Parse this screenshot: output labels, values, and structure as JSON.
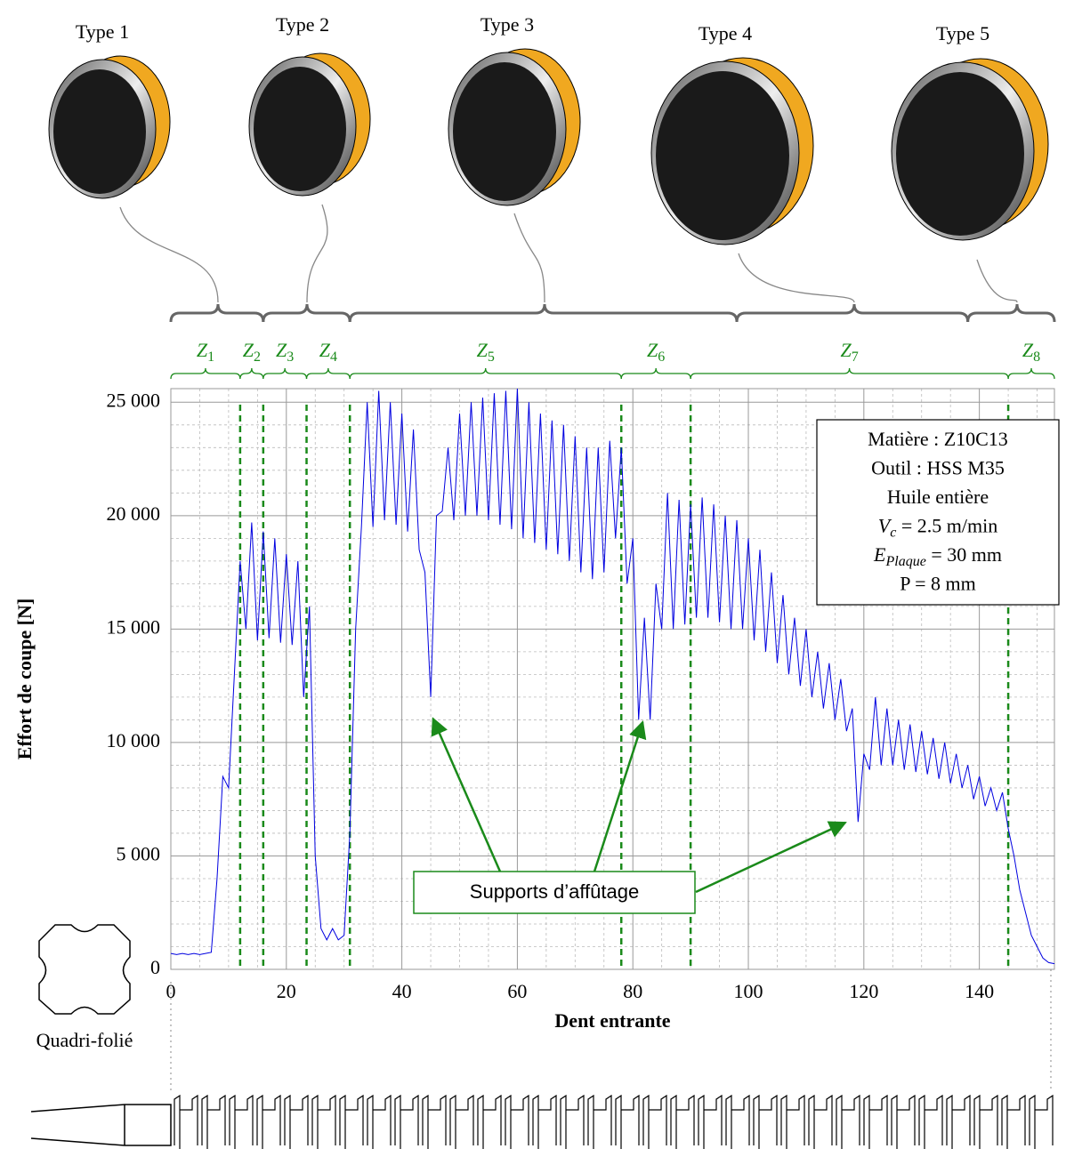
{
  "chart_data": {
    "type": "line",
    "xlabel": "Dent entrante",
    "ylabel": "Effort de coupe [N]",
    "xlim": [
      0,
      153
    ],
    "ylim": [
      0,
      25600
    ],
    "xticks": [
      0,
      20,
      40,
      60,
      80,
      100,
      120,
      140
    ],
    "yticks": [
      0,
      {
        "value": 5000,
        "label": "5 000"
      },
      {
        "value": 10000,
        "label": "10 000"
      },
      {
        "value": 15000,
        "label": "15 000"
      },
      {
        "value": 20000,
        "label": "20 000"
      },
      {
        "value": 25000,
        "label": "25 000"
      }
    ],
    "xminorticks": [
      5,
      10,
      15,
      25,
      30,
      35,
      45,
      50,
      55,
      65,
      70,
      75,
      85,
      90,
      95,
      105,
      110,
      115,
      125,
      130,
      135,
      145,
      150
    ],
    "yminorticks": [
      1000,
      2000,
      3000,
      4000,
      6000,
      7000,
      8000,
      9000,
      11000,
      12000,
      13000,
      14000,
      16000,
      17000,
      18000,
      19000,
      21000,
      22000,
      23000,
      24000
    ],
    "grid": true,
    "x": [
      0,
      1,
      2,
      3,
      4,
      5,
      6,
      7,
      8,
      9,
      10,
      11,
      12,
      13,
      14,
      15,
      16,
      17,
      18,
      19,
      20,
      21,
      22,
      23,
      24,
      25,
      26,
      27,
      28,
      29,
      30,
      31,
      32,
      33,
      34,
      35,
      36,
      37,
      38,
      39,
      40,
      41,
      42,
      43,
      44,
      45,
      46,
      47,
      48,
      49,
      50,
      51,
      52,
      53,
      54,
      55,
      56,
      57,
      58,
      59,
      60,
      61,
      62,
      63,
      64,
      65,
      66,
      67,
      68,
      69,
      70,
      71,
      72,
      73,
      74,
      75,
      76,
      77,
      78,
      79,
      80,
      81,
      82,
      83,
      84,
      85,
      86,
      87,
      88,
      89,
      90,
      91,
      92,
      93,
      94,
      95,
      96,
      97,
      98,
      99,
      100,
      101,
      102,
      103,
      104,
      105,
      106,
      107,
      108,
      109,
      110,
      111,
      112,
      113,
      114,
      115,
      116,
      117,
      118,
      119,
      120,
      121,
      122,
      123,
      124,
      125,
      126,
      127,
      128,
      129,
      130,
      131,
      132,
      133,
      134,
      135,
      136,
      137,
      138,
      139,
      140,
      141,
      142,
      143,
      144,
      145,
      146,
      147,
      148,
      149,
      150,
      151,
      152,
      153
    ],
    "series": [
      {
        "color": "#0000e0",
        "values": [
          700,
          650,
          700,
          650,
          700,
          650,
          700,
          750,
          4000,
          8500,
          8000,
          13000,
          18000,
          15000,
          19700,
          14500,
          19300,
          14600,
          19000,
          14400,
          18300,
          14300,
          18000,
          12000,
          16000,
          5000,
          1800,
          1300,
          1800,
          1300,
          1500,
          6000,
          15000,
          19500,
          25000,
          19500,
          25500,
          19800,
          25000,
          19600,
          24500,
          19300,
          23800,
          18500,
          17500,
          12000,
          20000,
          20200,
          23000,
          19800,
          24500,
          20000,
          25000,
          20000,
          25200,
          19800,
          25400,
          19600,
          25500,
          19400,
          25600,
          19000,
          25000,
          18800,
          24500,
          18500,
          24200,
          18300,
          24000,
          18000,
          23500,
          17500,
          23000,
          17200,
          23000,
          17500,
          23300,
          19000,
          23000,
          17000,
          19000,
          11000,
          15500,
          11000,
          17000,
          15000,
          21000,
          15000,
          20700,
          15200,
          20500,
          15500,
          20800,
          15500,
          20500,
          15300,
          20000,
          15000,
          19800,
          15000,
          19000,
          14500,
          18500,
          14000,
          17500,
          13500,
          16500,
          13000,
          15500,
          12500,
          15000,
          12000,
          14000,
          11500,
          13500,
          11000,
          12800,
          10500,
          11500,
          6500,
          9500,
          8800,
          12000,
          9000,
          11500,
          9000,
          11000,
          8800,
          10800,
          8700,
          10500,
          8600,
          10200,
          8400,
          10000,
          8200,
          9500,
          8000,
          9000,
          7500,
          8500,
          7200,
          8000,
          7000,
          7800,
          6200,
          5000,
          3500,
          2500,
          1500,
          1000,
          500,
          300,
          250
        ]
      }
    ],
    "zones": [
      {
        "label": "Z",
        "sub": "1",
        "start": 0,
        "end": 12
      },
      {
        "label": "Z",
        "sub": "2",
        "start": 12,
        "end": 16
      },
      {
        "label": "Z",
        "sub": "3",
        "start": 16,
        "end": 23.5
      },
      {
        "label": "Z",
        "sub": "4",
        "start": 23.5,
        "end": 31
      },
      {
        "label": "Z",
        "sub": "5",
        "start": 31,
        "end": 78
      },
      {
        "label": "Z",
        "sub": "6",
        "start": 78,
        "end": 90
      },
      {
        "label": "Z",
        "sub": "7",
        "start": 90,
        "end": 145
      },
      {
        "label": "Z",
        "sub": "8",
        "start": 145,
        "end": 153
      }
    ],
    "zone_color": "#1a8a1a",
    "tool_types": [
      {
        "label": "Type 1",
        "start": 0,
        "end": 16
      },
      {
        "label": "Type 2",
        "start": 16,
        "end": 31
      },
      {
        "label": "Type 3",
        "start": 31,
        "end": 98
      },
      {
        "label": "Type 4",
        "start": 98,
        "end": 138
      },
      {
        "label": "Type 5",
        "start": 138,
        "end": 153
      }
    ],
    "info_box": [
      {
        "text": "Matière : Z10C13"
      },
      {
        "text": "Outil : HSS M35"
      },
      {
        "text": "Huile entière"
      },
      {
        "text": "V",
        "sub": "c",
        "after": " = 2.5 m/min"
      },
      {
        "text": "E",
        "sub": "Plaque",
        "after": " = 30 mm"
      },
      {
        "text": "P = 8 mm"
      }
    ],
    "annotation": {
      "text": "Supports d’affûtage",
      "targets": [
        {
          "x": 45.4,
          "y": 11050
        },
        {
          "x": 81.7,
          "y": 10900
        },
        {
          "x": 116.8,
          "y": 6470
        }
      ]
    },
    "profile_label": "Quadri-folié"
  }
}
